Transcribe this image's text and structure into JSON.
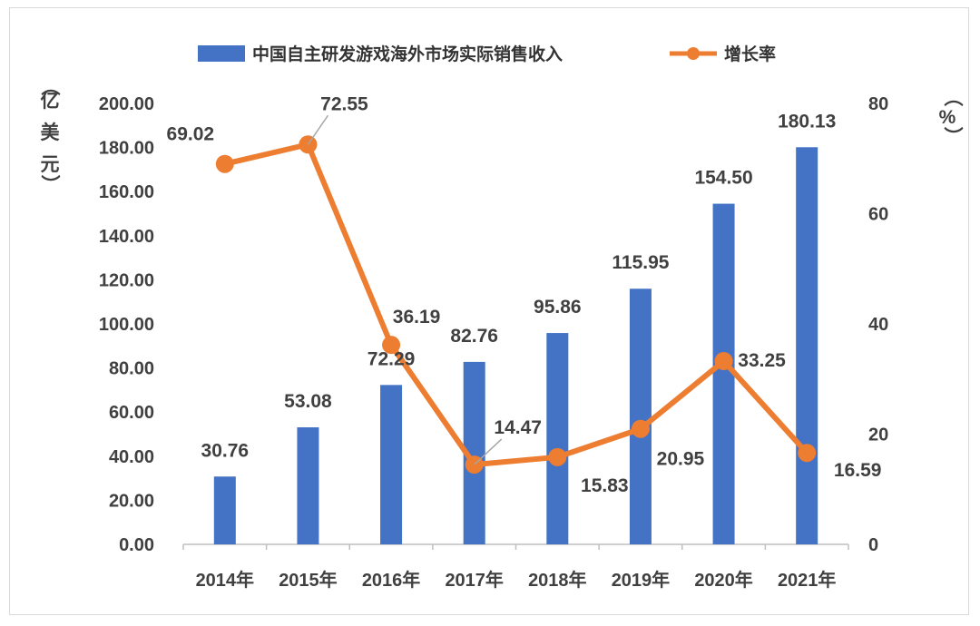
{
  "chart_data": {
    "type": "bar",
    "categories": [
      "2014年",
      "2015年",
      "2016年",
      "2017年",
      "2018年",
      "2019年",
      "2020年",
      "2021年"
    ],
    "series": [
      {
        "name": "中国自主研发游戏海外市场实际销售收入",
        "type": "bar",
        "axis": "left",
        "values": [
          30.76,
          53.08,
          72.29,
          82.76,
          95.86,
          115.95,
          154.5,
          180.13
        ],
        "labels": [
          "30.76",
          "53.08",
          "72.29",
          "82.76",
          "95.86",
          "115.95",
          "154.50",
          "180.13"
        ],
        "color": "#4472c4"
      },
      {
        "name": "增长率",
        "type": "line",
        "axis": "right",
        "values": [
          69.02,
          72.55,
          36.19,
          14.47,
          15.83,
          20.95,
          33.25,
          16.59
        ],
        "labels": [
          "69.02",
          "72.55",
          "36.19",
          "14.47",
          "15.83",
          "20.95",
          "33.25",
          "16.59"
        ],
        "color": "#ed7d31"
      }
    ],
    "y_left": {
      "label_chars": [
        "（",
        "亿",
        "美",
        "元",
        "）"
      ],
      "ylim": [
        0,
        200
      ],
      "ticks": [
        "0.00",
        "20.00",
        "40.00",
        "60.00",
        "80.00",
        "100.00",
        "120.00",
        "140.00",
        "160.00",
        "180.00",
        "200.00"
      ]
    },
    "y_right": {
      "label_chars": [
        "（",
        "%",
        "）"
      ],
      "ylim": [
        0,
        80
      ],
      "ticks": [
        "0",
        "20",
        "40",
        "60",
        "80"
      ]
    },
    "legend_position": "top",
    "grid": false
  }
}
